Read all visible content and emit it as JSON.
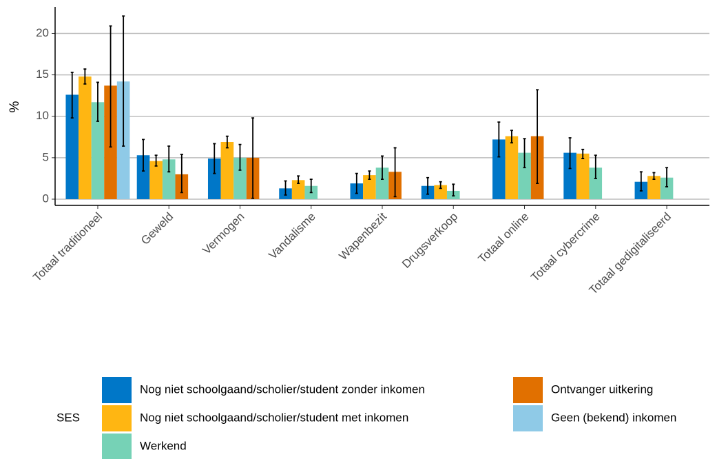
{
  "chart_data": {
    "type": "bar",
    "y_label": "%",
    "legend_title": "SES",
    "categories": [
      "Totaal traditioneel",
      "Geweld",
      "Vermogen",
      "Vandalisme",
      "Wapenbezit",
      "Drugsverkoop",
      "Totaal online",
      "Totaal cybercrime",
      "Totaal gedigitaliseerd"
    ],
    "series": [
      {
        "name": "Nog niet schoolgaand/scholier/student zonder inkomen",
        "color": "#0077c8",
        "values": [
          12.6,
          5.3,
          4.9,
          1.3,
          1.9,
          1.6,
          7.2,
          5.6,
          2.1
        ],
        "error_low": [
          9.8,
          3.4,
          3.1,
          0.5,
          0.7,
          0.6,
          5.1,
          3.7,
          1.0
        ],
        "error_high": [
          15.3,
          7.2,
          6.7,
          2.2,
          3.1,
          2.6,
          9.3,
          7.4,
          3.3
        ]
      },
      {
        "name": "Nog niet schoolgaand/scholier/student met inkomen",
        "color": "#ffb612",
        "values": [
          14.8,
          4.6,
          6.9,
          2.3,
          2.9,
          1.7,
          7.6,
          5.5,
          2.8
        ],
        "error_low": [
          13.9,
          4.0,
          6.2,
          1.9,
          2.4,
          1.3,
          6.8,
          4.9,
          2.4
        ],
        "error_high": [
          15.7,
          5.3,
          7.6,
          2.8,
          3.4,
          2.1,
          8.3,
          6.0,
          3.2
        ]
      },
      {
        "name": "Werkend",
        "color": "#76d2b6",
        "values": [
          11.7,
          4.8,
          5.0,
          1.6,
          3.8,
          1.0,
          5.6,
          3.8,
          2.6
        ],
        "error_low": [
          9.4,
          3.3,
          3.5,
          0.8,
          2.4,
          0.4,
          3.8,
          2.5,
          1.5
        ],
        "error_high": [
          14.1,
          6.4,
          6.6,
          2.4,
          5.2,
          1.8,
          7.3,
          5.3,
          3.8
        ]
      },
      {
        "name": "Ontvanger uitkering",
        "color": "#e17000",
        "values": [
          13.7,
          3.0,
          5.0,
          null,
          3.3,
          null,
          7.6,
          null,
          null
        ],
        "error_low": [
          6.3,
          0.8,
          0.1,
          null,
          0.3,
          null,
          1.9,
          null,
          null
        ],
        "error_high": [
          20.9,
          5.4,
          9.8,
          null,
          6.2,
          null,
          13.2,
          null,
          null
        ]
      },
      {
        "name": "Geen (bekend) inkomen",
        "color": "#8fcae7",
        "values": [
          14.2,
          null,
          null,
          null,
          null,
          null,
          null,
          null,
          null
        ],
        "error_low": [
          6.4,
          null,
          null,
          null,
          null,
          null,
          null,
          null,
          null
        ],
        "error_high": [
          22.1,
          null,
          null,
          null,
          null,
          null,
          null,
          null,
          null
        ]
      }
    ],
    "ylim": [
      -0.75,
      23.2
    ],
    "yticks": [
      0,
      5,
      10,
      15,
      20
    ],
    "grid": true
  }
}
